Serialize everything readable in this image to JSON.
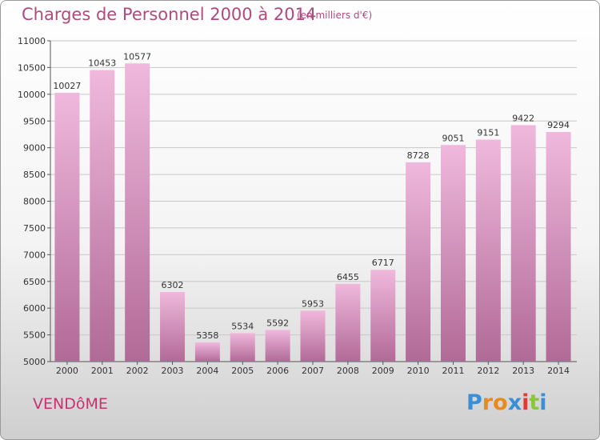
{
  "title": "Charges de Personnel 2000 à 2014",
  "unit_note": "(en milliers d'€)",
  "city": "VENDôME",
  "logo": {
    "letters": [
      "P",
      "r",
      "o",
      "x",
      "i",
      "t",
      "i"
    ],
    "colors": [
      "#3a8fd6",
      "#e98a1c",
      "#e98a1c",
      "#3a8fd6",
      "#e53a2c",
      "#8cc63e",
      "#3a8fd6"
    ]
  },
  "colors": {
    "bar_top": "#f0b8dc",
    "bar_bottom": "#b06a96",
    "text_accent": "#b04a7e"
  },
  "chart_data": {
    "type": "bar",
    "categories": [
      "2000",
      "2001",
      "2002",
      "2003",
      "2004",
      "2005",
      "2006",
      "2007",
      "2008",
      "2009",
      "2010",
      "2011",
      "2012",
      "2013",
      "2014"
    ],
    "values": [
      10027,
      10453,
      10577,
      6302,
      5358,
      5534,
      5592,
      5953,
      6455,
      6717,
      8728,
      9051,
      9151,
      9422,
      9294
    ],
    "ylim": [
      5000,
      11000
    ],
    "yticks": [
      5000,
      5500,
      6000,
      6500,
      7000,
      7500,
      8000,
      8500,
      9000,
      9500,
      10000,
      10500,
      11000
    ],
    "grid": true
  }
}
